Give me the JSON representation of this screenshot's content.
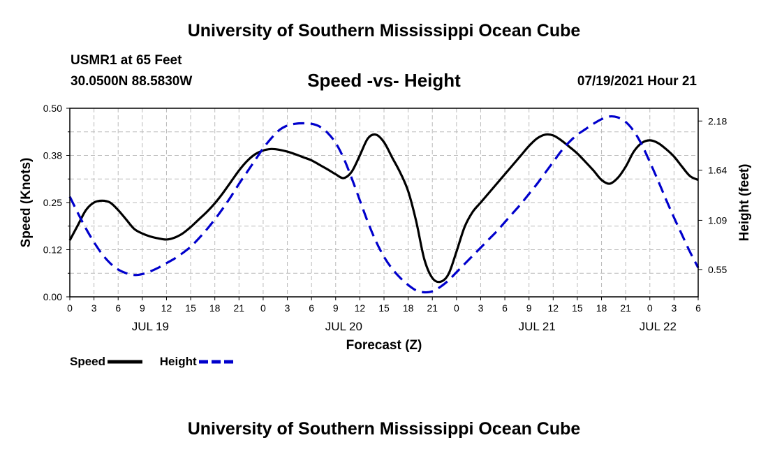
{
  "header": {
    "title": "University of Southern Mississippi Ocean Cube",
    "station": "USMR1 at 65 Feet",
    "coords": "30.0500N  88.5830W",
    "date": "07/19/2021 Hour 21"
  },
  "footer": {
    "title": "University of Southern Mississippi Ocean Cube"
  },
  "legend": {
    "speed_label": "Speed",
    "height_label": "Height"
  },
  "colors": {
    "speed": "#000000",
    "height": "#0000cc",
    "grid": "#bbbbbb"
  },
  "chart_data": {
    "type": "line",
    "title": "Speed -vs- Height",
    "xlabel": "Forecast (Z)",
    "ylabel": "Speed (Knots)",
    "y2label": "Height (feet)",
    "xlim": [
      0,
      78
    ],
    "ylim": [
      0,
      0.5
    ],
    "y2lim": [
      0.25,
      2.32
    ],
    "x_tick_labels": [
      "0",
      "3",
      "6",
      "9",
      "12",
      "15",
      "18",
      "21",
      "0",
      "3",
      "6",
      "9",
      "12",
      "15",
      "18",
      "21",
      "0",
      "3",
      "6",
      "9",
      "12",
      "15",
      "18",
      "21",
      "0",
      "3",
      "6"
    ],
    "y_ticks": [
      "0.00",
      "0.12",
      "0.25",
      "0.38",
      "0.50"
    ],
    "y2_ticks": [
      "0.55",
      "1.09",
      "1.64",
      "2.18"
    ],
    "date_labels": [
      {
        "label": "JUL 19",
        "x": 10
      },
      {
        "label": "JUL 20",
        "x": 34
      },
      {
        "label": "JUL 21",
        "x": 58
      },
      {
        "label": "JUL 22",
        "x": 73
      }
    ],
    "series": [
      {
        "name": "Speed",
        "axis": "left",
        "style": "solid",
        "x": [
          0,
          1,
          2,
          3,
          4,
          5,
          6,
          7,
          8,
          9,
          10,
          11,
          12,
          13,
          14,
          15,
          16,
          17,
          18,
          19,
          20,
          21,
          22,
          23,
          24,
          25,
          26,
          27,
          28,
          29,
          30,
          31,
          32,
          33,
          34,
          35,
          36,
          37,
          38,
          39,
          40,
          41,
          42,
          43,
          44,
          45,
          46,
          47,
          48,
          49,
          50,
          51,
          52,
          53,
          54,
          55,
          56,
          57,
          58,
          59,
          60,
          61,
          62,
          63,
          64,
          65,
          66,
          67,
          68,
          69,
          70,
          71,
          72,
          73,
          74,
          75,
          76,
          77,
          78
        ],
        "values": [
          0.15,
          0.19,
          0.23,
          0.25,
          0.255,
          0.25,
          0.23,
          0.205,
          0.18,
          0.168,
          0.16,
          0.155,
          0.152,
          0.157,
          0.168,
          0.185,
          0.205,
          0.225,
          0.248,
          0.275,
          0.305,
          0.335,
          0.36,
          0.378,
          0.388,
          0.392,
          0.39,
          0.385,
          0.378,
          0.37,
          0.362,
          0.35,
          0.338,
          0.325,
          0.315,
          0.332,
          0.375,
          0.42,
          0.43,
          0.41,
          0.37,
          0.33,
          0.28,
          0.2,
          0.1,
          0.05,
          0.04,
          0.06,
          0.12,
          0.185,
          0.225,
          0.25,
          0.275,
          0.3,
          0.325,
          0.35,
          0.375,
          0.4,
          0.42,
          0.43,
          0.428,
          0.415,
          0.398,
          0.38,
          0.358,
          0.335,
          0.31,
          0.3,
          0.315,
          0.345,
          0.385,
          0.408,
          0.415,
          0.408,
          0.392,
          0.372,
          0.345,
          0.32,
          0.31
        ]
      },
      {
        "name": "Height",
        "axis": "right",
        "style": "dashed",
        "x": [
          0,
          1,
          2,
          3,
          4,
          5,
          6,
          7,
          8,
          9,
          10,
          11,
          12,
          13,
          14,
          15,
          16,
          17,
          18,
          19,
          20,
          21,
          22,
          23,
          24,
          25,
          26,
          27,
          28,
          29,
          30,
          31,
          32,
          33,
          34,
          35,
          36,
          37,
          38,
          39,
          40,
          41,
          42,
          43,
          44,
          45,
          46,
          47,
          48,
          49,
          50,
          51,
          52,
          53,
          54,
          55,
          56,
          57,
          58,
          59,
          60,
          61,
          62,
          63,
          64,
          65,
          66,
          67,
          68,
          69,
          70,
          71,
          72,
          73,
          74,
          75,
          76,
          77,
          78
        ],
        "values": [
          1.35,
          1.17,
          1.0,
          0.85,
          0.72,
          0.62,
          0.55,
          0.51,
          0.49,
          0.5,
          0.53,
          0.57,
          0.62,
          0.67,
          0.73,
          0.8,
          0.89,
          0.99,
          1.1,
          1.22,
          1.35,
          1.49,
          1.62,
          1.75,
          1.88,
          1.99,
          2.08,
          2.13,
          2.15,
          2.155,
          2.15,
          2.12,
          2.05,
          1.94,
          1.77,
          1.55,
          1.31,
          1.07,
          0.86,
          0.69,
          0.56,
          0.46,
          0.38,
          0.32,
          0.3,
          0.31,
          0.36,
          0.43,
          0.52,
          0.61,
          0.7,
          0.79,
          0.88,
          0.97,
          1.07,
          1.17,
          1.27,
          1.38,
          1.49,
          1.61,
          1.73,
          1.85,
          1.95,
          2.03,
          2.09,
          2.15,
          2.2,
          2.23,
          2.22,
          2.17,
          2.07,
          1.92,
          1.73,
          1.53,
          1.32,
          1.12,
          0.93,
          0.74,
          0.57
        ]
      }
    ]
  }
}
